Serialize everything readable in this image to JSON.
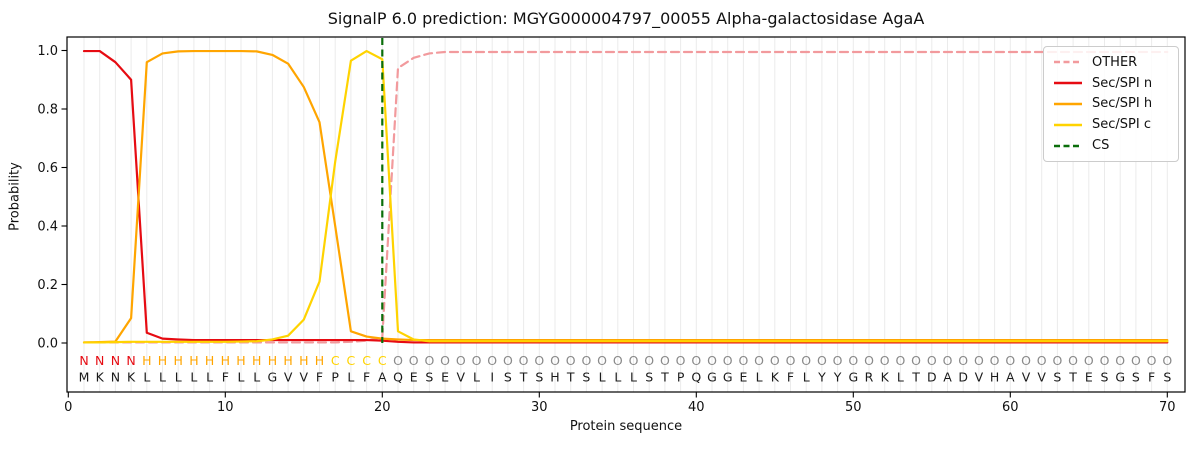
{
  "chart_data": {
    "type": "line",
    "title": "SignalP 6.0 prediction: MGYG000004797_00055 Alpha-galactosidase AgaA",
    "xlabel": "Protein sequence",
    "ylabel": "Probability",
    "xticks": [
      0,
      10,
      20,
      30,
      40,
      50,
      60,
      70
    ],
    "yticks": [
      0.0,
      0.2,
      0.4,
      0.6,
      0.8,
      1.0
    ],
    "ylim": [
      0.0,
      1.0
    ],
    "grid": "vertical gridline at every residue position",
    "legend_position": "upper right",
    "n_residues": 70,
    "sequence": "MKNKLLLLLFLLGVVFPLFAQESEVLISTSHTSLLLSTPQGGELKFLYYGRKLTDADVHAVVSTESGSFS",
    "residue_regions": "NNNNHHHHHHHHHHHHCCCCOOOOOOOOOOOOOOOOOOOOOOOOOOOOOOOOOOOOOOOOOOOOOOOOOO",
    "region_colors": {
      "N": "#e60b12",
      "H": "#ffa500",
      "C": "#ffd300",
      "O": "#8a8a8a"
    },
    "sequence_color": "#1a1a1a",
    "series": [
      {
        "name": "OTHER",
        "color": "#f29a9d",
        "dashed": true,
        "values": [
          0.002,
          0.002,
          0.002,
          0.002,
          0.002,
          0.002,
          0.002,
          0.002,
          0.002,
          0.002,
          0.002,
          0.002,
          0.002,
          0.002,
          0.002,
          0.002,
          0.002,
          0.004,
          0.008,
          0.02,
          0.94,
          0.975,
          0.99,
          0.995,
          0.995,
          0.995,
          0.995,
          0.995,
          0.995,
          0.995,
          0.995,
          0.995,
          0.995,
          0.995,
          0.995,
          0.995,
          0.995,
          0.995,
          0.995,
          0.995,
          0.995,
          0.995,
          0.995,
          0.995,
          0.995,
          0.995,
          0.995,
          0.995,
          0.995,
          0.995,
          0.995,
          0.995,
          0.995,
          0.995,
          0.995,
          0.995,
          0.995,
          0.995,
          0.995,
          0.995,
          0.995,
          0.995,
          0.995,
          0.995,
          0.995,
          0.995,
          0.995,
          0.995,
          0.995,
          0.995
        ]
      },
      {
        "name": "Sec/SPI n",
        "color": "#e60b12",
        "dashed": false,
        "values": [
          0.998,
          0.998,
          0.96,
          0.9,
          0.035,
          0.015,
          0.012,
          0.01,
          0.01,
          0.01,
          0.01,
          0.01,
          0.01,
          0.01,
          0.01,
          0.01,
          0.01,
          0.01,
          0.01,
          0.008,
          0.004,
          0.002,
          0.002,
          0.002,
          0.002,
          0.002,
          0.002,
          0.002,
          0.002,
          0.002,
          0.002,
          0.002,
          0.002,
          0.002,
          0.002,
          0.002,
          0.002,
          0.002,
          0.002,
          0.002,
          0.002,
          0.002,
          0.002,
          0.002,
          0.002,
          0.002,
          0.002,
          0.002,
          0.002,
          0.002,
          0.002,
          0.002,
          0.002,
          0.002,
          0.002,
          0.002,
          0.002,
          0.002,
          0.002,
          0.002,
          0.002,
          0.002,
          0.002,
          0.002,
          0.002,
          0.002,
          0.002,
          0.002,
          0.002,
          0.002
        ]
      },
      {
        "name": "Sec/SPI h",
        "color": "#ffa500",
        "dashed": false,
        "values": [
          0.002,
          0.003,
          0.005,
          0.085,
          0.96,
          0.99,
          0.997,
          0.998,
          0.998,
          0.998,
          0.998,
          0.997,
          0.985,
          0.955,
          0.875,
          0.755,
          0.4,
          0.04,
          0.022,
          0.015,
          0.012,
          0.01,
          0.01,
          0.01,
          0.01,
          0.01,
          0.01,
          0.01,
          0.01,
          0.01,
          0.01,
          0.01,
          0.01,
          0.01,
          0.01,
          0.01,
          0.01,
          0.01,
          0.01,
          0.01,
          0.01,
          0.01,
          0.01,
          0.01,
          0.01,
          0.01,
          0.01,
          0.01,
          0.01,
          0.01,
          0.01,
          0.01,
          0.01,
          0.01,
          0.01,
          0.01,
          0.01,
          0.01,
          0.01,
          0.01,
          0.01,
          0.01,
          0.01,
          0.01,
          0.01,
          0.01,
          0.01,
          0.01,
          0.01,
          0.01
        ]
      },
      {
        "name": "Sec/SPI c",
        "color": "#ffd300",
        "dashed": false,
        "values": [
          0.002,
          0.002,
          0.003,
          0.004,
          0.004,
          0.004,
          0.004,
          0.004,
          0.004,
          0.004,
          0.005,
          0.006,
          0.012,
          0.025,
          0.08,
          0.21,
          0.62,
          0.965,
          0.998,
          0.97,
          0.04,
          0.012,
          0.006,
          0.006,
          0.006,
          0.006,
          0.006,
          0.006,
          0.006,
          0.006,
          0.006,
          0.006,
          0.006,
          0.006,
          0.006,
          0.006,
          0.006,
          0.006,
          0.006,
          0.006,
          0.006,
          0.006,
          0.006,
          0.006,
          0.006,
          0.006,
          0.006,
          0.006,
          0.006,
          0.006,
          0.006,
          0.006,
          0.006,
          0.006,
          0.006,
          0.006,
          0.006,
          0.006,
          0.006,
          0.006,
          0.006,
          0.006,
          0.006,
          0.006,
          0.006,
          0.006,
          0.006,
          0.006,
          0.006,
          0.006
        ]
      }
    ],
    "cs_marker": {
      "name": "CS",
      "color": "#0a6e0a",
      "dashed": true,
      "position": 20
    }
  }
}
